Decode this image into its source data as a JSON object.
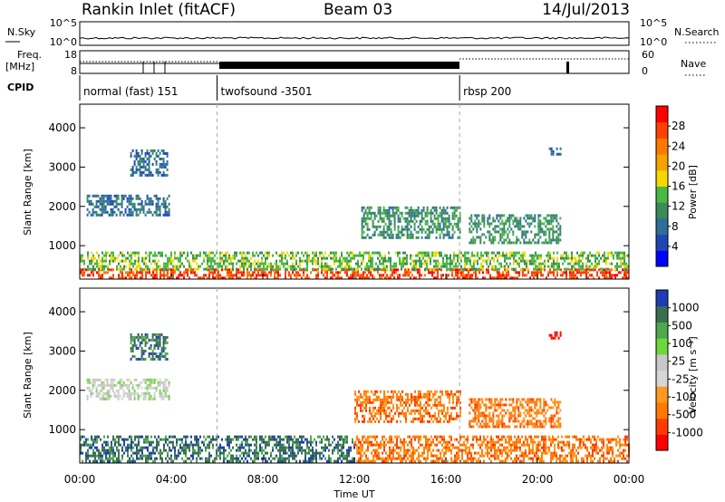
{
  "header": {
    "station": "Rankin Inlet (fitACF)",
    "beam": "Beam 03",
    "date": "14/Jul/2013"
  },
  "status_panels": {
    "nsky_label": "N.Sky",
    "nsky_ticks": [
      "10^5",
      "10^0"
    ],
    "nsearch_label": "N.Search",
    "nsearch_ticks": [
      "10^5",
      "10^0"
    ],
    "freq_label": "Freq.",
    "freq_unit": "[MHz]",
    "freq_ticks": [
      "18",
      "8"
    ],
    "nave_label": "Nave",
    "nave_ticks": [
      "60",
      "0"
    ],
    "cpid_label": "CPID",
    "cpid_segments": [
      {
        "name": "normal (fast) 151",
        "start_h": 0,
        "end_h": 6
      },
      {
        "name": "twofsound -3501",
        "start_h": 6,
        "end_h": 16.6
      },
      {
        "name": "rbsp 200",
        "start_h": 16.6,
        "end_h": 24
      }
    ]
  },
  "colors": {
    "power_scale": [
      "#0000ff",
      "#1e46b4",
      "#2e6e9a",
      "#3a8a5a",
      "#49b845",
      "#f5d800",
      "#f5a300",
      "#ff7800",
      "#ff4000",
      "#ff0000"
    ],
    "velocity_scale": [
      "#1e3cb4",
      "#3a6e50",
      "#4ea84e",
      "#6cd83c",
      "#c8c8c8",
      "#d6d6d6",
      "#ff9a1e",
      "#ff7a00",
      "#ff3c00",
      "#ff0000"
    ]
  },
  "chart_data": [
    {
      "type": "heatmap",
      "title": "Power",
      "xlabel": "",
      "ylabel": "Slant Range [km]",
      "xlim_hours": [
        0,
        24
      ],
      "ylim": [
        150,
        4600
      ],
      "y_ticks": [
        1000,
        2000,
        3000,
        4000
      ],
      "y_tick_labels": [
        "1000",
        "2000",
        "3000",
        "4000"
      ],
      "colorbar": {
        "label": "Power [dB]",
        "ticks": [
          4,
          8,
          12,
          16,
          20,
          24,
          28
        ],
        "tick_labels": [
          "4",
          "8",
          "12",
          "16",
          "20",
          "24",
          "28"
        ],
        "range": [
          0,
          32
        ]
      },
      "regions": [
        {
          "x": [
            0,
            24
          ],
          "y": [
            180,
            420
          ],
          "level": 28
        },
        {
          "x": [
            0,
            24
          ],
          "y": [
            420,
            850
          ],
          "level": 14
        },
        {
          "x": [
            0.3,
            3.9
          ],
          "y": [
            1800,
            2300
          ],
          "level": 6
        },
        {
          "x": [
            2.2,
            3.8
          ],
          "y": [
            2800,
            3450
          ],
          "level": 6
        },
        {
          "x": [
            12.3,
            16.6
          ],
          "y": [
            1200,
            2000
          ],
          "level": 10
        },
        {
          "x": [
            17,
            21
          ],
          "y": [
            1100,
            1800
          ],
          "level": 10
        },
        {
          "x": [
            20.5,
            21
          ],
          "y": [
            3300,
            3500
          ],
          "level": 6
        }
      ]
    },
    {
      "type": "heatmap",
      "title": "Velocity",
      "xlabel": "Time UT",
      "ylabel": "Slant Range [km]",
      "xlim_hours": [
        0,
        24
      ],
      "ylim": [
        150,
        4600
      ],
      "x_ticks": [
        "00:00",
        "04:00",
        "08:00",
        "12:00",
        "16:00",
        "20:00",
        "00:00"
      ],
      "y_ticks": [
        1000,
        2000,
        3000,
        4000
      ],
      "y_tick_labels": [
        "1000",
        "2000",
        "3000",
        "4000"
      ],
      "colorbar": {
        "label": "Velocity [m s⁻¹]",
        "ticks": [
          1000,
          500,
          100,
          25,
          -25,
          -100,
          -500,
          -1000
        ],
        "tick_labels": [
          "1000",
          "500",
          "100",
          "25",
          "-25",
          "-100",
          "-500",
          "-1000"
        ]
      },
      "regions": [
        {
          "x": [
            0,
            12
          ],
          "y": [
            180,
            850
          ],
          "level": 100
        },
        {
          "x": [
            12,
            24
          ],
          "y": [
            180,
            850
          ],
          "level": -150
        },
        {
          "x": [
            12,
            16.6
          ],
          "y": [
            1200,
            2000
          ],
          "level": -150
        },
        {
          "x": [
            17,
            21
          ],
          "y": [
            1100,
            1800
          ],
          "level": -150
        },
        {
          "x": [
            2.2,
            3.8
          ],
          "y": [
            2800,
            3450
          ],
          "level": 100
        },
        {
          "x": [
            0.3,
            3.9
          ],
          "y": [
            1800,
            2300
          ],
          "level": 0
        },
        {
          "x": [
            20.5,
            21
          ],
          "y": [
            3300,
            3500
          ],
          "level": -500
        }
      ]
    }
  ]
}
